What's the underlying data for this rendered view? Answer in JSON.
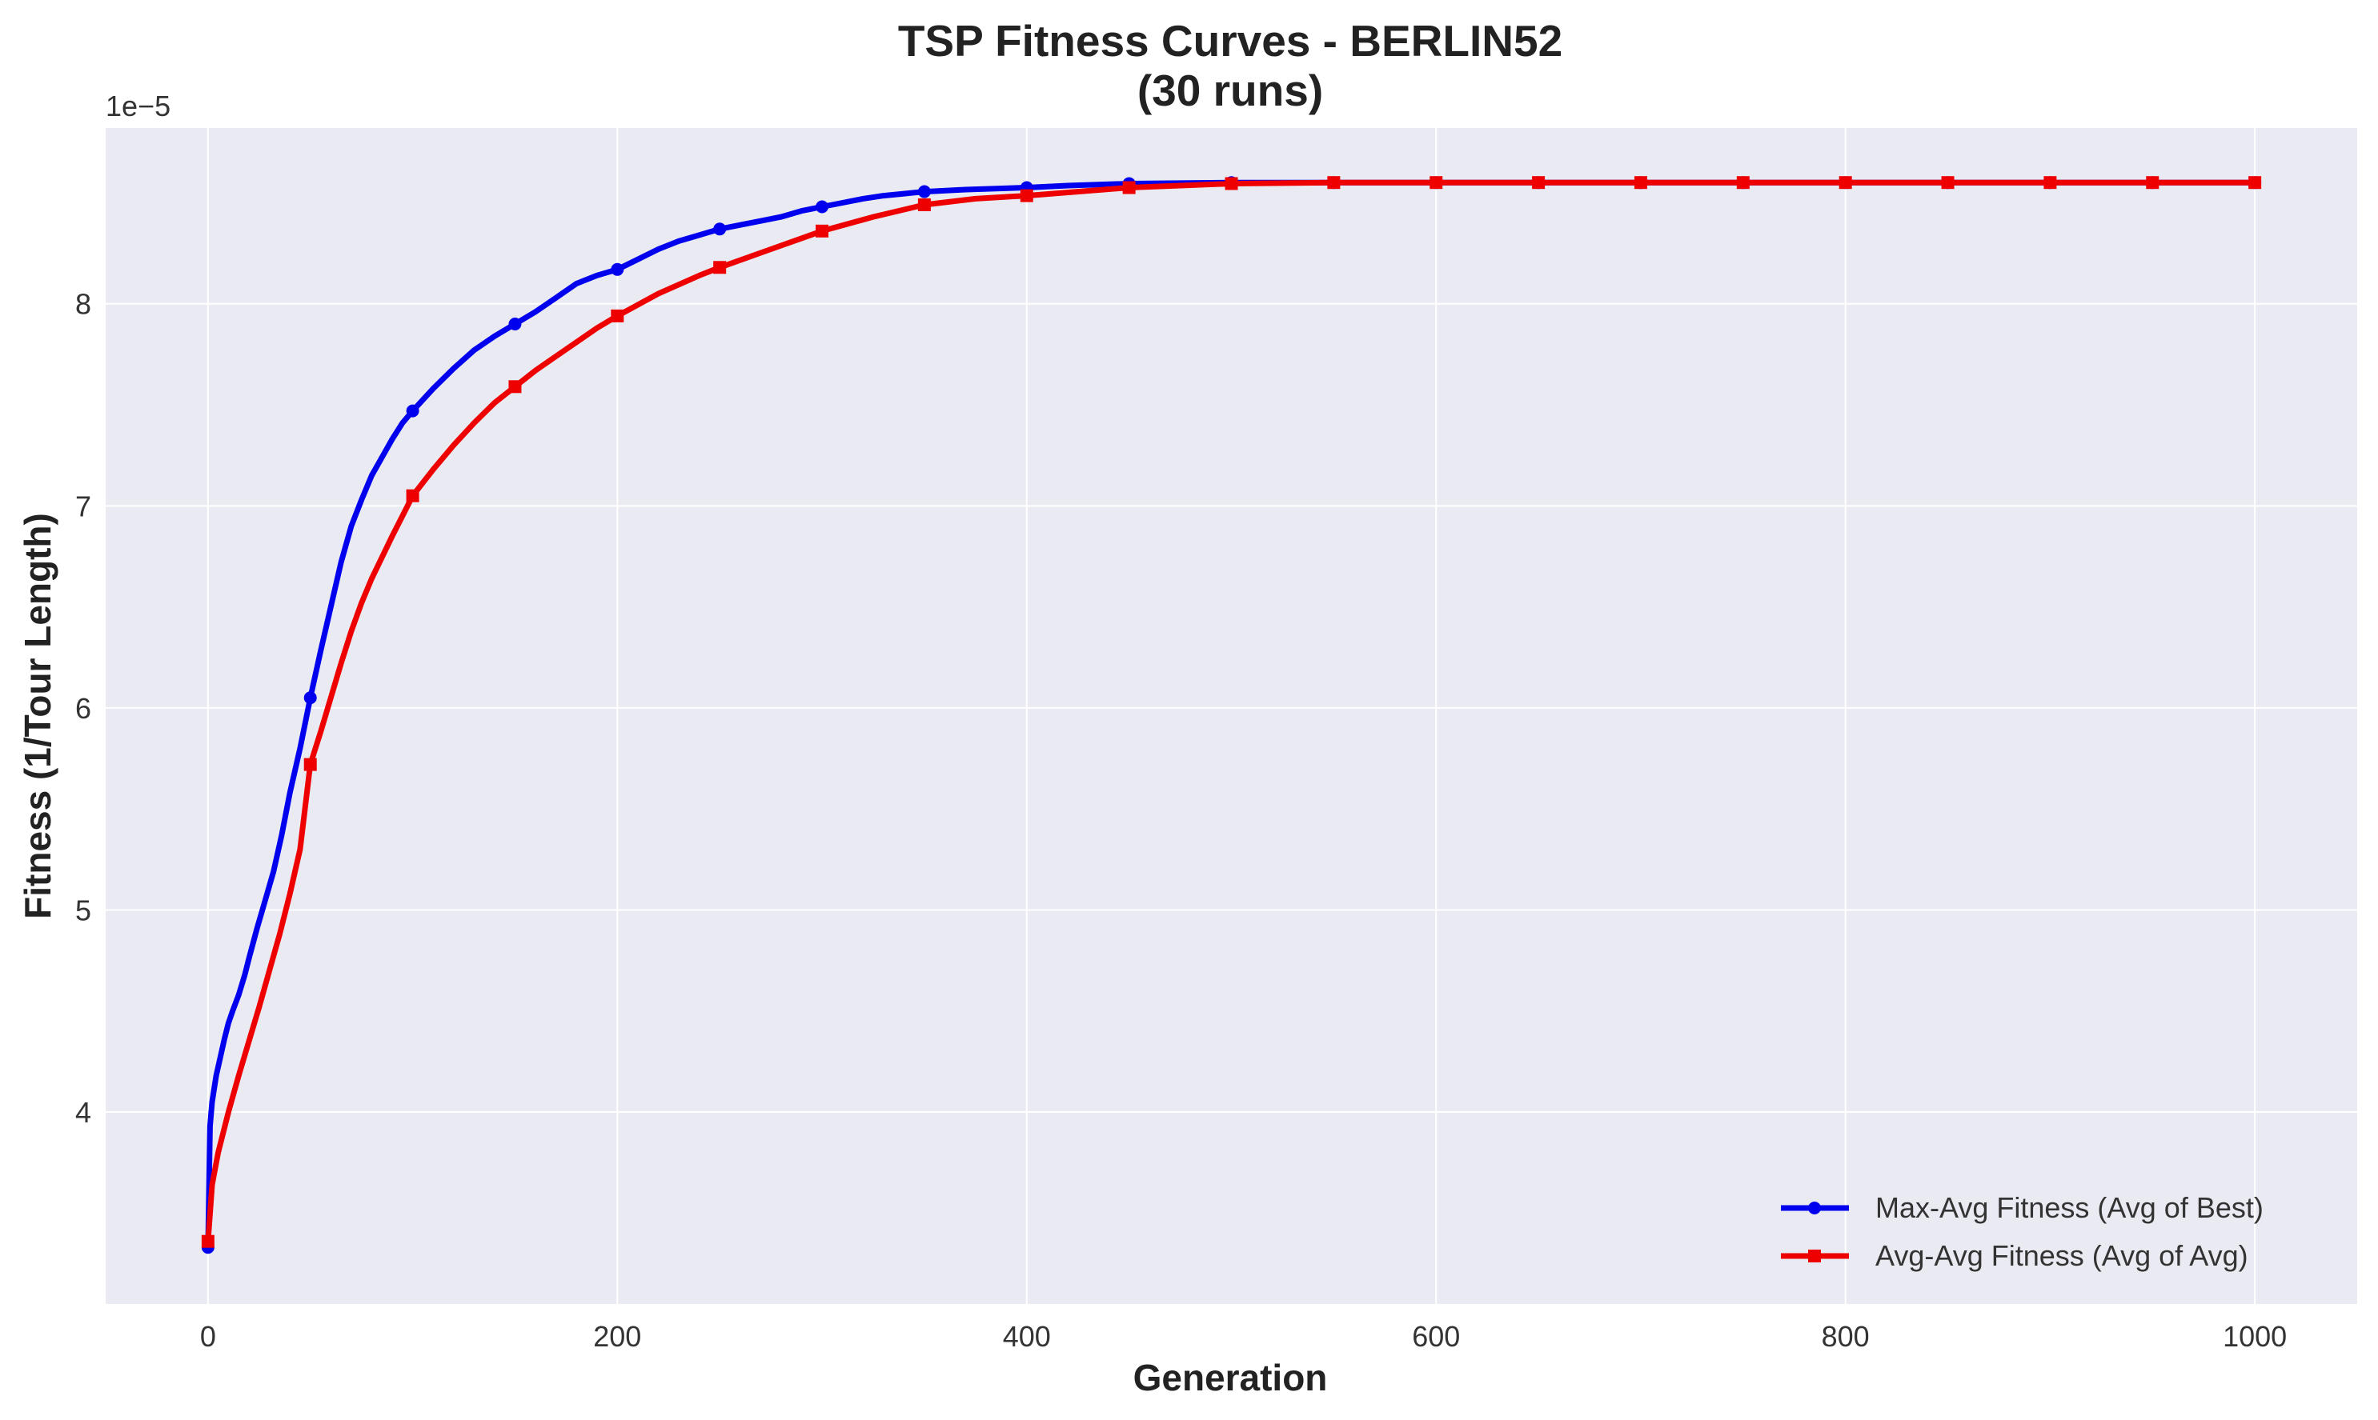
{
  "chart_data": {
    "type": "line",
    "title_line1": "TSP Fitness Curves - BERLIN52",
    "title_line2": "(30 runs)",
    "xlabel": "Generation",
    "ylabel": "Fitness (1/Tour Length)",
    "y_offset_label": "1e−5",
    "xlim": [
      -50,
      1050
    ],
    "ylim": [
      3.05,
      8.87
    ],
    "x_ticks": [
      0,
      200,
      400,
      600,
      800,
      1000
    ],
    "y_ticks": [
      4,
      5,
      6,
      7,
      8
    ],
    "y_scale_note": "values in units of 1e-5",
    "grid": true,
    "legend_position": "lower-right",
    "series": [
      {
        "name": "Max-Avg Fitness (Avg of Best)",
        "color": "#0000ee",
        "marker": "circle",
        "x": [
          0,
          1,
          2,
          4,
          6,
          8,
          10,
          12,
          15,
          18,
          20,
          24,
          28,
          32,
          36,
          40,
          45,
          50,
          55,
          60,
          65,
          70,
          75,
          80,
          85,
          90,
          95,
          100,
          110,
          120,
          130,
          140,
          150,
          160,
          170,
          180,
          190,
          200,
          210,
          220,
          230,
          240,
          250,
          260,
          270,
          280,
          290,
          300,
          310,
          320,
          330,
          340,
          350,
          370,
          400,
          420,
          450,
          500,
          550,
          600,
          650,
          700,
          750,
          800,
          850,
          900,
          950,
          1000
        ],
        "y": [
          3.33,
          3.93,
          4.05,
          4.18,
          4.27,
          4.36,
          4.44,
          4.5,
          4.58,
          4.68,
          4.76,
          4.91,
          5.05,
          5.19,
          5.37,
          5.58,
          5.8,
          6.05,
          6.28,
          6.5,
          6.72,
          6.9,
          7.03,
          7.15,
          7.24,
          7.33,
          7.41,
          7.47,
          7.58,
          7.68,
          7.77,
          7.84,
          7.9,
          7.96,
          8.03,
          8.1,
          8.14,
          8.17,
          8.22,
          8.27,
          8.31,
          8.34,
          8.37,
          8.39,
          8.41,
          8.43,
          8.46,
          8.48,
          8.5,
          8.52,
          8.535,
          8.545,
          8.555,
          8.565,
          8.575,
          8.585,
          8.595,
          8.6,
          8.6,
          8.6,
          8.6,
          8.6,
          8.6,
          8.6,
          8.6,
          8.6,
          8.6,
          8.6
        ],
        "marker_x": [
          0,
          50,
          100,
          150,
          200,
          250,
          300,
          350,
          400,
          450,
          500,
          550,
          600,
          650,
          700,
          750,
          800,
          850,
          900,
          950,
          1000
        ]
      },
      {
        "name": "Avg-Avg Fitness (Avg of Avg)",
        "color": "#ee0000",
        "marker": "square",
        "x": [
          0,
          2,
          5,
          10,
          15,
          20,
          25,
          30,
          35,
          40,
          45,
          50,
          55,
          60,
          65,
          70,
          75,
          80,
          90,
          100,
          110,
          120,
          130,
          140,
          150,
          160,
          170,
          180,
          190,
          200,
          220,
          240,
          250,
          275,
          300,
          325,
          350,
          375,
          400,
          450,
          500,
          550,
          600,
          650,
          700,
          750,
          800,
          850,
          900,
          950,
          1000
        ],
        "y": [
          3.36,
          3.64,
          3.8,
          4.0,
          4.18,
          4.35,
          4.52,
          4.7,
          4.88,
          5.08,
          5.3,
          5.72,
          5.88,
          6.05,
          6.22,
          6.38,
          6.52,
          6.64,
          6.85,
          7.05,
          7.18,
          7.3,
          7.41,
          7.51,
          7.59,
          7.67,
          7.74,
          7.81,
          7.88,
          7.94,
          8.05,
          8.14,
          8.18,
          8.27,
          8.36,
          8.43,
          8.49,
          8.52,
          8.535,
          8.575,
          8.595,
          8.6,
          8.6,
          8.6,
          8.6,
          8.6,
          8.6,
          8.6,
          8.6,
          8.6,
          8.6
        ],
        "marker_x": [
          0,
          50,
          100,
          150,
          200,
          250,
          300,
          350,
          400,
          450,
          500,
          550,
          600,
          650,
          700,
          750,
          800,
          850,
          900,
          950,
          1000
        ]
      }
    ]
  },
  "colors": {
    "plot_background": "#eaeaf2",
    "grid": "#ffffff",
    "text": "#222222"
  }
}
